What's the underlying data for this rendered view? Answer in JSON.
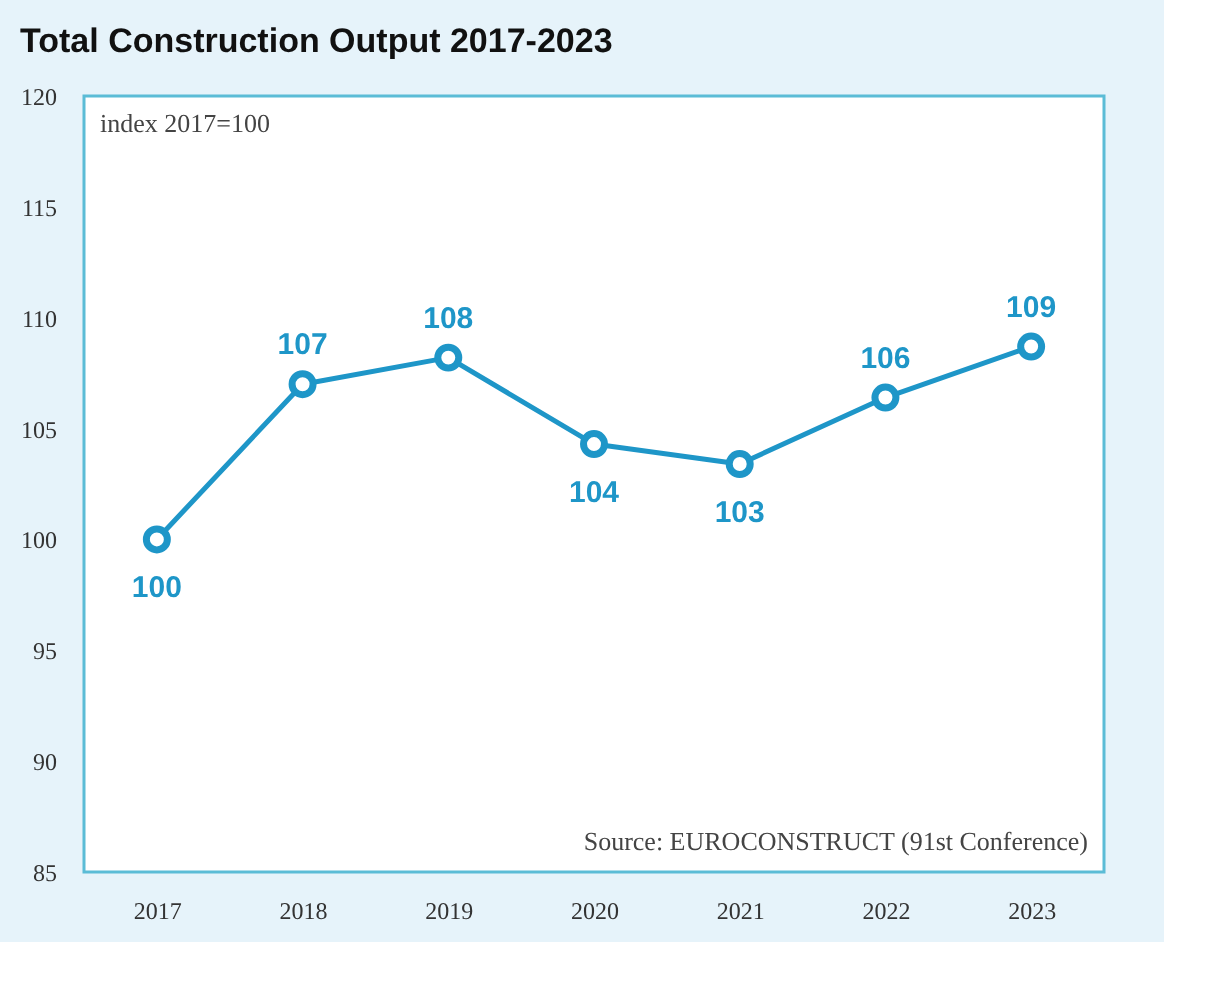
{
  "chart_data": {
    "type": "line",
    "title": "Total Construction Output 2017-2023",
    "categories": [
      "2017",
      "2018",
      "2019",
      "2020",
      "2021",
      "2022",
      "2023"
    ],
    "series": [
      {
        "color": "#1e96c8",
        "values": [
          100,
          107.0,
          108.2,
          104.3,
          103.4,
          106.4,
          108.7
        ],
        "value_labels": [
          "100",
          "107",
          "108",
          "104",
          "103",
          "106",
          "109"
        ]
      }
    ],
    "ylim": [
      85,
      120
    ],
    "yticks": [
      85,
      90,
      95,
      100,
      105,
      110,
      115,
      120
    ],
    "annotations": [
      "index 2017=100",
      "Source: EUROCONSTRUCT (91st Conference)"
    ],
    "marker": "circle",
    "line_style": "solid",
    "grid": false
  }
}
